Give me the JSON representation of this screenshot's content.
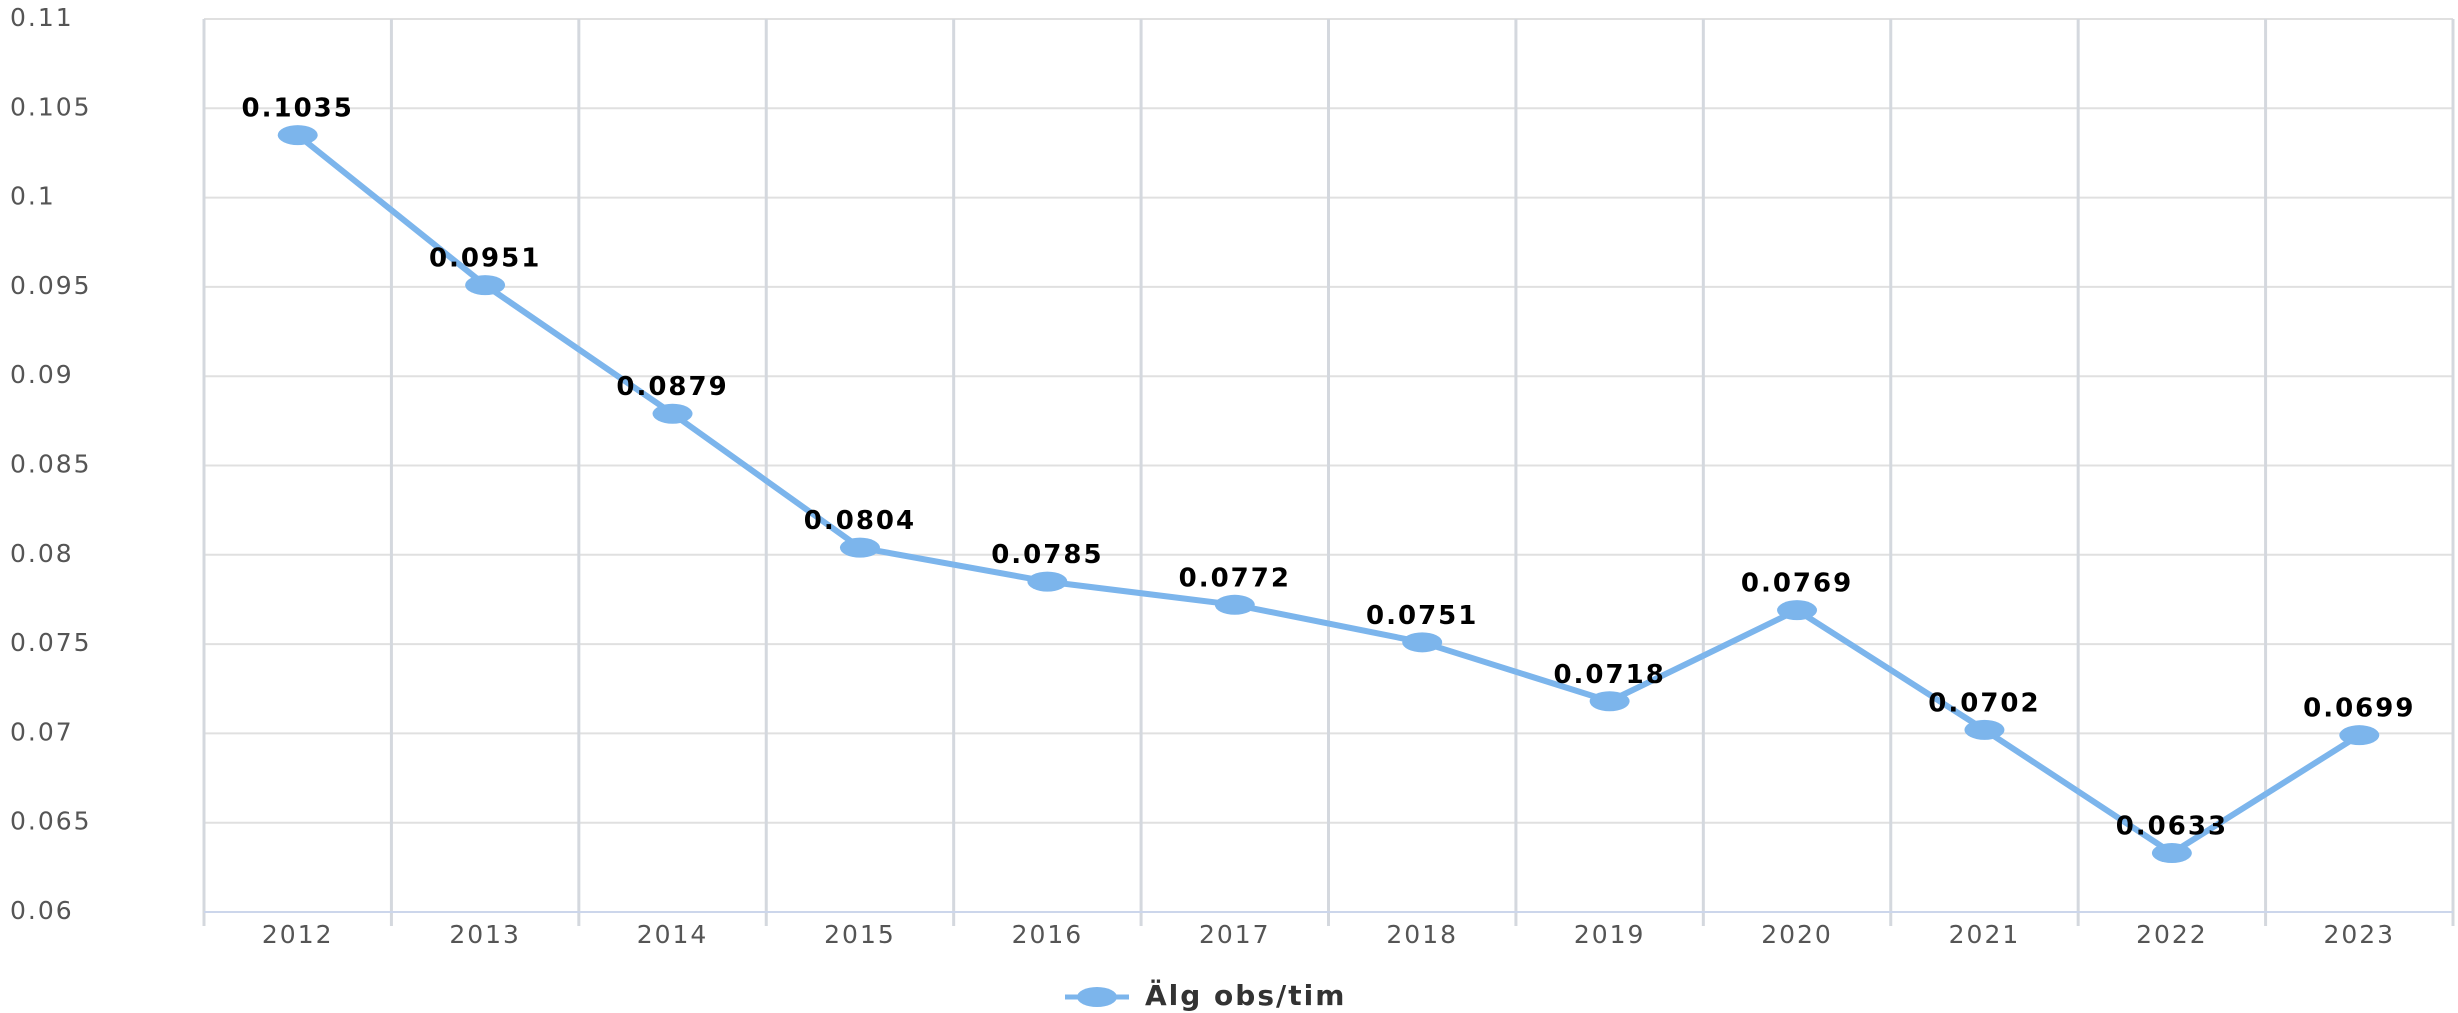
{
  "chart_data": {
    "type": "line",
    "categories": [
      "2012",
      "2013",
      "2014",
      "2015",
      "2016",
      "2017",
      "2018",
      "2019",
      "2020",
      "2021",
      "2022",
      "2023"
    ],
    "series": [
      {
        "name": "Älg obs/tim",
        "color": "#7cb5ec",
        "values": [
          0.1035,
          0.0951,
          0.0879,
          0.0804,
          0.0785,
          0.0772,
          0.0751,
          0.0718,
          0.0769,
          0.0702,
          0.0633,
          0.0699
        ]
      }
    ],
    "ylim": [
      0.06,
      0.11
    ],
    "yticks": [
      0.06,
      0.065,
      0.07,
      0.075,
      0.08,
      0.085,
      0.09,
      0.095,
      0.1,
      0.105,
      0.11
    ],
    "grid": true,
    "legend": "bottom"
  }
}
